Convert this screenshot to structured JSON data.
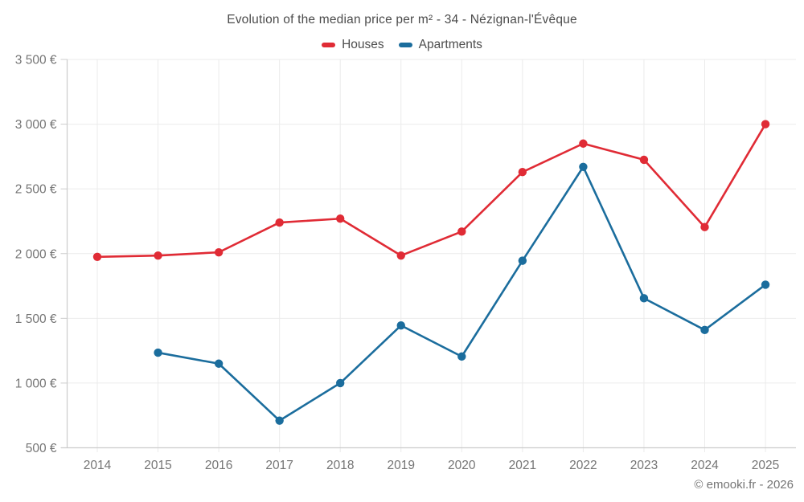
{
  "title": "Evolution of the median price per m² - 34 - Nézignan-l'Évêque",
  "footer": "© emooki.fr - 2026",
  "legend": {
    "items": [
      {
        "label": "Houses",
        "color": "#e02b35"
      },
      {
        "label": "Apartments",
        "color": "#1b6d9d"
      }
    ]
  },
  "chart_data": {
    "type": "line",
    "title": "Evolution of the median price per m² - 34 - Nézignan-l'Évêque",
    "categories": [
      "2014",
      "2015",
      "2016",
      "2017",
      "2018",
      "2019",
      "2020",
      "2021",
      "2022",
      "2023",
      "2024",
      "2025"
    ],
    "series": [
      {
        "name": "Houses",
        "color": "#e02b35",
        "values": [
          1975,
          1985,
          2010,
          2240,
          2270,
          1985,
          2170,
          2630,
          2850,
          2725,
          2205,
          3000
        ]
      },
      {
        "name": "Apartments",
        "color": "#1b6d9d",
        "values": [
          null,
          1235,
          1150,
          710,
          1000,
          1445,
          1205,
          1945,
          2670,
          1655,
          1410,
          1760
        ]
      }
    ],
    "ylim": [
      500,
      3500
    ],
    "ytick_step": 500,
    "ytick_labels": [
      "500 €",
      "1 000 €",
      "1 500 €",
      "2 000 €",
      "2 500 €",
      "3 000 €",
      "3 500 €"
    ],
    "currency": "€",
    "grid": true,
    "legend_position": "top",
    "grid_color": "#ebebeb",
    "axis_color": "#cccccc",
    "tick_text_color": "#757575"
  }
}
